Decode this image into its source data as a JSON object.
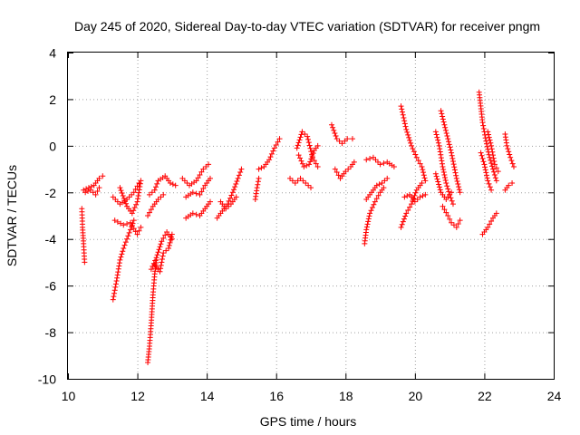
{
  "chart_data": {
    "type": "scatter",
    "title": "Day 245 of 2020, Sidereal Day-to-day VTEC variation (SDTVAR) for receiver pngm",
    "xlabel": "GPS time / hours",
    "ylabel": "SDTVAR / TECUs",
    "xlim": [
      10,
      24
    ],
    "ylim": [
      -10,
      4
    ],
    "xticks": [
      "10",
      "12",
      "14",
      "16",
      "18",
      "20",
      "22",
      "24"
    ],
    "yticks": [
      "-10",
      "-8",
      "-6",
      "-4",
      "-2",
      "0",
      "2",
      "4"
    ],
    "grid": true,
    "marker": "+",
    "color": "#ff0000",
    "series": [
      {
        "name": "pngm",
        "segments": [
          [
            [
              10.4,
              -2.7
            ],
            [
              10.42,
              -3.5
            ],
            [
              10.45,
              -4.2
            ],
            [
              10.48,
              -5.0
            ]
          ],
          [
            [
              10.45,
              -1.9
            ],
            [
              10.6,
              -1.8
            ],
            [
              10.75,
              -1.7
            ],
            [
              10.9,
              -1.4
            ],
            [
              11.0,
              -1.3
            ]
          ],
          [
            [
              10.5,
              -2.0
            ],
            [
              10.65,
              -1.9
            ],
            [
              10.8,
              -2.1
            ],
            [
              10.9,
              -1.8
            ]
          ],
          [
            [
              11.3,
              -6.6
            ],
            [
              11.4,
              -5.8
            ],
            [
              11.5,
              -4.9
            ],
            [
              11.6,
              -4.4
            ],
            [
              11.7,
              -4.0
            ],
            [
              11.8,
              -3.6
            ],
            [
              11.9,
              -3.2
            ]
          ],
          [
            [
              11.3,
              -2.2
            ],
            [
              11.5,
              -2.5
            ],
            [
              11.7,
              -2.3
            ],
            [
              11.9,
              -2.0
            ],
            [
              12.05,
              -1.6
            ]
          ],
          [
            [
              11.35,
              -3.2
            ],
            [
              11.6,
              -3.4
            ],
            [
              11.8,
              -3.3
            ],
            [
              12.0,
              -3.8
            ],
            [
              12.1,
              -3.5
            ]
          ],
          [
            [
              11.5,
              -1.8
            ],
            [
              11.7,
              -2.6
            ],
            [
              11.85,
              -2.9
            ],
            [
              12.0,
              -2.4
            ],
            [
              12.1,
              -1.5
            ]
          ],
          [
            [
              12.3,
              -9.3
            ],
            [
              12.35,
              -8.6
            ],
            [
              12.4,
              -7.6
            ],
            [
              12.45,
              -6.4
            ],
            [
              12.5,
              -5.5
            ],
            [
              12.55,
              -4.9
            ]
          ],
          [
            [
              12.4,
              -5.3
            ],
            [
              12.55,
              -4.8
            ],
            [
              12.7,
              -4.1
            ],
            [
              12.85,
              -3.7
            ],
            [
              13.0,
              -4.0
            ]
          ],
          [
            [
              12.5,
              -5.1
            ],
            [
              12.65,
              -5.4
            ],
            [
              12.75,
              -4.6
            ],
            [
              12.9,
              -4.4
            ],
            [
              13.0,
              -3.8
            ]
          ],
          [
            [
              12.3,
              -3.0
            ],
            [
              12.45,
              -2.6
            ],
            [
              12.6,
              -2.3
            ],
            [
              12.75,
              -2.1
            ]
          ],
          [
            [
              12.35,
              -2.1
            ],
            [
              12.5,
              -1.9
            ],
            [
              12.6,
              -1.5
            ],
            [
              12.8,
              -1.3
            ],
            [
              12.95,
              -1.6
            ],
            [
              13.1,
              -1.7
            ]
          ],
          [
            [
              13.3,
              -1.4
            ],
            [
              13.5,
              -1.7
            ],
            [
              13.7,
              -1.5
            ],
            [
              13.9,
              -1.0
            ],
            [
              14.05,
              -0.8
            ]
          ],
          [
            [
              13.4,
              -2.2
            ],
            [
              13.6,
              -2.0
            ],
            [
              13.8,
              -2.1
            ],
            [
              13.95,
              -1.7
            ],
            [
              14.1,
              -1.4
            ]
          ],
          [
            [
              13.4,
              -3.1
            ],
            [
              13.6,
              -2.9
            ],
            [
              13.8,
              -3.0
            ],
            [
              14.0,
              -2.6
            ],
            [
              14.1,
              -2.4
            ]
          ],
          [
            [
              14.3,
              -3.1
            ],
            [
              14.45,
              -2.8
            ],
            [
              14.6,
              -2.5
            ],
            [
              14.75,
              -2.0
            ],
            [
              14.9,
              -1.4
            ],
            [
              15.0,
              -1.0
            ]
          ],
          [
            [
              14.4,
              -2.4
            ],
            [
              14.55,
              -2.7
            ],
            [
              14.7,
              -2.5
            ],
            [
              14.85,
              -2.2
            ]
          ],
          [
            [
              15.4,
              -2.3
            ],
            [
              15.45,
              -1.8
            ],
            [
              15.5,
              -1.4
            ]
          ],
          [
            [
              15.5,
              -1.0
            ],
            [
              15.65,
              -0.9
            ],
            [
              15.8,
              -0.6
            ],
            [
              15.95,
              -0.1
            ],
            [
              16.1,
              0.3
            ]
          ],
          [
            [
              16.4,
              -1.4
            ],
            [
              16.55,
              -1.6
            ],
            [
              16.7,
              -1.4
            ],
            [
              16.85,
              -1.6
            ],
            [
              17.0,
              -1.8
            ]
          ],
          [
            [
              16.6,
              -0.1
            ],
            [
              16.75,
              0.6
            ],
            [
              16.9,
              0.4
            ],
            [
              17.05,
              -0.5
            ],
            [
              17.2,
              -0.9
            ]
          ],
          [
            [
              16.65,
              -0.4
            ],
            [
              16.8,
              -0.9
            ],
            [
              16.95,
              -0.8
            ],
            [
              17.1,
              -0.2
            ],
            [
              17.2,
              0.0
            ]
          ],
          [
            [
              17.6,
              0.9
            ],
            [
              17.75,
              0.3
            ],
            [
              17.9,
              0.1
            ],
            [
              18.05,
              0.3
            ],
            [
              18.2,
              0.3
            ]
          ],
          [
            [
              17.7,
              -1.0
            ],
            [
              17.85,
              -1.4
            ],
            [
              18.0,
              -1.1
            ],
            [
              18.15,
              -0.9
            ],
            [
              18.25,
              -0.7
            ]
          ],
          [
            [
              18.55,
              -4.2
            ],
            [
              18.6,
              -3.6
            ],
            [
              18.7,
              -2.9
            ],
            [
              18.85,
              -2.4
            ],
            [
              19.0,
              -2.0
            ],
            [
              19.1,
              -1.8
            ]
          ],
          [
            [
              18.6,
              -2.3
            ],
            [
              18.75,
              -2.0
            ],
            [
              18.9,
              -1.7
            ],
            [
              19.05,
              -1.6
            ],
            [
              19.2,
              -1.4
            ]
          ],
          [
            [
              18.6,
              -0.6
            ],
            [
              18.8,
              -0.5
            ],
            [
              19.0,
              -0.8
            ],
            [
              19.2,
              -0.7
            ],
            [
              19.4,
              -0.9
            ]
          ],
          [
            [
              19.6,
              1.7
            ],
            [
              19.75,
              0.7
            ],
            [
              19.9,
              0.0
            ],
            [
              20.05,
              -0.5
            ],
            [
              20.2,
              -0.9
            ],
            [
              20.3,
              -1.5
            ]
          ],
          [
            [
              19.6,
              -3.5
            ],
            [
              19.75,
              -2.9
            ],
            [
              19.9,
              -2.5
            ],
            [
              20.05,
              -1.9
            ],
            [
              20.2,
              -1.6
            ]
          ],
          [
            [
              19.7,
              -2.2
            ],
            [
              19.85,
              -2.1
            ],
            [
              20.0,
              -2.4
            ],
            [
              20.15,
              -2.2
            ],
            [
              20.3,
              -2.1
            ]
          ],
          [
            [
              20.6,
              0.6
            ],
            [
              20.7,
              0.0
            ],
            [
              20.8,
              -0.9
            ],
            [
              20.9,
              -1.6
            ],
            [
              21.0,
              -2.1
            ],
            [
              21.1,
              -2.5
            ]
          ],
          [
            [
              20.75,
              1.5
            ],
            [
              20.85,
              0.9
            ],
            [
              20.95,
              0.3
            ],
            [
              21.05,
              -0.3
            ],
            [
              21.2,
              -1.4
            ],
            [
              21.3,
              -2.0
            ]
          ],
          [
            [
              20.8,
              -2.6
            ],
            [
              20.95,
              -3.0
            ],
            [
              21.05,
              -3.3
            ],
            [
              21.2,
              -3.5
            ],
            [
              21.3,
              -3.2
            ]
          ],
          [
            [
              20.6,
              -1.2
            ],
            [
              20.75,
              -2.0
            ],
            [
              20.9,
              -2.3
            ],
            [
              21.05,
              -2.0
            ]
          ],
          [
            [
              21.85,
              2.3
            ],
            [
              21.95,
              1.0
            ],
            [
              22.05,
              0.2
            ],
            [
              22.15,
              -0.5
            ],
            [
              22.25,
              -1.0
            ],
            [
              22.35,
              -1.5
            ]
          ],
          [
            [
              21.9,
              -0.3
            ],
            [
              22.0,
              -0.8
            ],
            [
              22.1,
              -1.5
            ],
            [
              22.2,
              -1.9
            ]
          ],
          [
            [
              21.95,
              -3.8
            ],
            [
              22.1,
              -3.5
            ],
            [
              22.25,
              -3.1
            ],
            [
              22.35,
              -2.9
            ]
          ],
          [
            [
              22.1,
              0.6
            ],
            [
              22.2,
              0.0
            ],
            [
              22.3,
              -0.8
            ],
            [
              22.4,
              -1.1
            ]
          ],
          [
            [
              22.6,
              0.5
            ],
            [
              22.65,
              0.0
            ],
            [
              22.75,
              -0.5
            ],
            [
              22.85,
              -0.9
            ]
          ],
          [
            [
              22.6,
              -1.9
            ],
            [
              22.7,
              -1.7
            ],
            [
              22.8,
              -1.6
            ]
          ]
        ]
      }
    ]
  }
}
